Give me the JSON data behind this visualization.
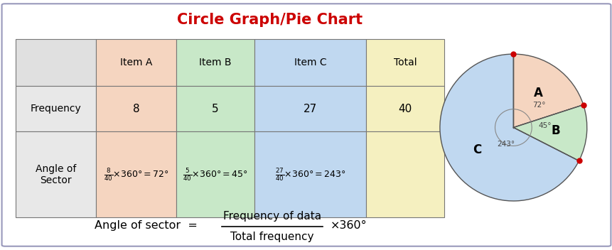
{
  "title": "Circle Graph/Pie Chart",
  "title_color": "#cc0000",
  "title_fontsize": 15,
  "background_color": "#ffffff",
  "border_color": "#aaaacc",
  "table": {
    "headers": [
      "",
      "Item A",
      "Item B",
      "Item C",
      "Total"
    ],
    "header_bg": [
      "#e0e0e0",
      "#f5d5c0",
      "#c8e8c8",
      "#c0d8f0",
      "#f5f0c0"
    ],
    "row1_label": "Frequency",
    "row1_label_bg": "#e8e8e8",
    "row1_values": [
      "8",
      "5",
      "27",
      "40"
    ],
    "row1_bg": [
      "#f5d5c0",
      "#c8e8c8",
      "#c0d8f0",
      "#f5f0c0"
    ],
    "row2_label": "Angle of\nSector",
    "row2_label_bg": "#e8e8e8",
    "row2_bg": [
      "#f5d5c0",
      "#c8e8c8",
      "#c0d8f0",
      "#f5f0c0"
    ]
  },
  "pie": {
    "values": [
      72,
      45,
      243
    ],
    "labels": [
      "A",
      "B",
      "C"
    ],
    "colors": [
      "#f5d5c0",
      "#c8e8c8",
      "#c0d8f0"
    ],
    "angle_labels": [
      "72°",
      "45°",
      "243°"
    ]
  },
  "dot_color": "#cc0000",
  "formula_left": "Angle of sector  ",
  "formula_num": "Frequency of data",
  "formula_den": "Total frequency",
  "formula_right": "×360°"
}
